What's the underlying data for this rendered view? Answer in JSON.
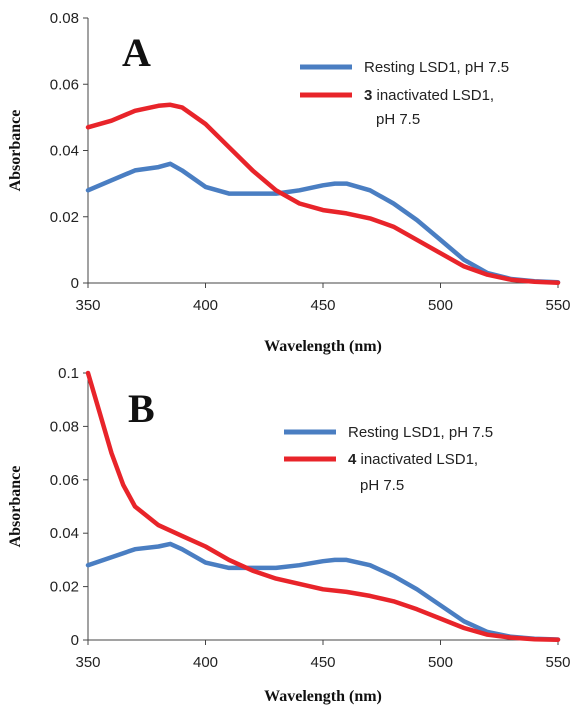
{
  "chart_data": [
    {
      "type": "line",
      "panel_label": "A",
      "xlabel": "Wavelength (nm)",
      "ylabel": "Absorbance",
      "xlim": [
        350,
        550
      ],
      "ylim": [
        0,
        0.08
      ],
      "x_ticks": [
        "350",
        "400",
        "450",
        "500",
        "550"
      ],
      "y_ticks": [
        "0",
        "0.02",
        "0.04",
        "0.06",
        "0.08"
      ],
      "legend_position": "top-right",
      "series": [
        {
          "name": "Resting LSD1, pH 7.5",
          "color": "#4a7ec2",
          "x": [
            350,
            360,
            370,
            380,
            385,
            390,
            400,
            410,
            420,
            430,
            440,
            450,
            455,
            460,
            470,
            480,
            490,
            500,
            510,
            520,
            530,
            540,
            550
          ],
          "y": [
            0.028,
            0.031,
            0.034,
            0.035,
            0.036,
            0.034,
            0.029,
            0.027,
            0.027,
            0.027,
            0.028,
            0.0295,
            0.03,
            0.03,
            0.028,
            0.024,
            0.019,
            0.013,
            0.007,
            0.003,
            0.0012,
            0.0005,
            0.0002
          ]
        },
        {
          "name": "3 inactivated  LSD1, pH 7.5",
          "name_number": "3",
          "name_rest_line1": " inactivated  LSD1,",
          "name_line2": "pH 7.5",
          "color": "#e8242a",
          "x": [
            350,
            360,
            370,
            380,
            385,
            390,
            400,
            410,
            420,
            430,
            440,
            450,
            460,
            470,
            480,
            490,
            500,
            510,
            520,
            530,
            540,
            550
          ],
          "y": [
            0.047,
            0.049,
            0.052,
            0.0535,
            0.0538,
            0.053,
            0.048,
            0.041,
            0.034,
            0.028,
            0.024,
            0.022,
            0.021,
            0.0195,
            0.017,
            0.013,
            0.009,
            0.005,
            0.0025,
            0.001,
            0.0004,
            0.0001
          ]
        }
      ]
    },
    {
      "type": "line",
      "panel_label": "B",
      "xlabel": "Wavelength (nm)",
      "ylabel": "Absorbance",
      "xlim": [
        350,
        550
      ],
      "ylim": [
        0,
        0.1
      ],
      "x_ticks": [
        "350",
        "400",
        "450",
        "500",
        "550"
      ],
      "y_ticks": [
        "0",
        "0.02",
        "0.04",
        "0.06",
        "0.08",
        "0.1"
      ],
      "legend_position": "top-right",
      "series": [
        {
          "name": "Resting LSD1, pH 7.5",
          "color": "#4a7ec2",
          "x": [
            350,
            360,
            370,
            380,
            385,
            390,
            400,
            410,
            420,
            430,
            440,
            450,
            455,
            460,
            470,
            480,
            490,
            500,
            510,
            520,
            530,
            540,
            550
          ],
          "y": [
            0.028,
            0.031,
            0.034,
            0.035,
            0.036,
            0.034,
            0.029,
            0.027,
            0.027,
            0.027,
            0.028,
            0.0295,
            0.03,
            0.03,
            0.028,
            0.024,
            0.019,
            0.013,
            0.007,
            0.003,
            0.0012,
            0.0005,
            0.0002
          ]
        },
        {
          "name": "4 inactivated LSD1, pH 7.5",
          "name_number": "4",
          "name_rest_line1": " inactivated LSD1,",
          "name_line2": "pH 7.5",
          "color": "#e8242a",
          "x": [
            350,
            355,
            360,
            365,
            370,
            380,
            390,
            400,
            410,
            420,
            430,
            440,
            450,
            460,
            470,
            480,
            490,
            500,
            510,
            520,
            530,
            540,
            550
          ],
          "y": [
            0.1,
            0.085,
            0.07,
            0.058,
            0.05,
            0.043,
            0.039,
            0.035,
            0.03,
            0.026,
            0.023,
            0.021,
            0.019,
            0.018,
            0.0165,
            0.0145,
            0.0115,
            0.008,
            0.0045,
            0.002,
            0.0009,
            0.0003,
            0.0001
          ]
        }
      ]
    }
  ]
}
